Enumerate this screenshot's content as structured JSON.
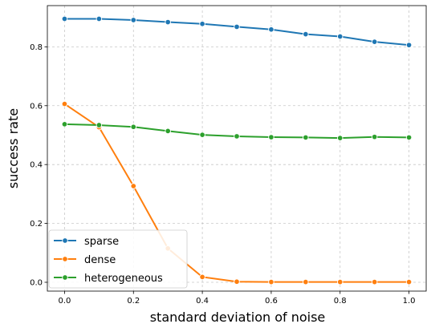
{
  "chart_data": {
    "type": "line",
    "title": "",
    "xlabel": "standard deviation of noise",
    "ylabel": "success rate",
    "xlim": [
      -0.05,
      1.05
    ],
    "ylim": [
      -0.03,
      0.94
    ],
    "xticks": [
      0.0,
      0.2,
      0.4,
      0.6,
      0.8,
      1.0
    ],
    "xtick_labels": [
      "0.0",
      "0.2",
      "0.4",
      "0.6",
      "0.8",
      "1.0"
    ],
    "yticks": [
      0.0,
      0.2,
      0.4,
      0.6,
      0.8
    ],
    "ytick_labels": [
      "0.0",
      "0.2",
      "0.4",
      "0.6",
      "0.8"
    ],
    "grid": true,
    "legend_position": "lower-left",
    "x": [
      0.0,
      0.1,
      0.2,
      0.3,
      0.4,
      0.5,
      0.6,
      0.7,
      0.8,
      0.9,
      1.0
    ],
    "series": [
      {
        "name": "sparse",
        "color": "#1f77b4",
        "values": [
          0.895,
          0.895,
          0.891,
          0.884,
          0.878,
          0.868,
          0.859,
          0.843,
          0.835,
          0.817,
          0.806
        ]
      },
      {
        "name": "dense",
        "color": "#ff7f0e",
        "values": [
          0.606,
          0.527,
          0.327,
          0.115,
          0.018,
          0.002,
          0.001,
          0.001,
          0.001,
          0.001,
          0.001
        ]
      },
      {
        "name": "heterogeneous",
        "color": "#2ca02c",
        "values": [
          0.537,
          0.534,
          0.528,
          0.514,
          0.501,
          0.496,
          0.493,
          0.492,
          0.49,
          0.494,
          0.492
        ]
      }
    ]
  }
}
